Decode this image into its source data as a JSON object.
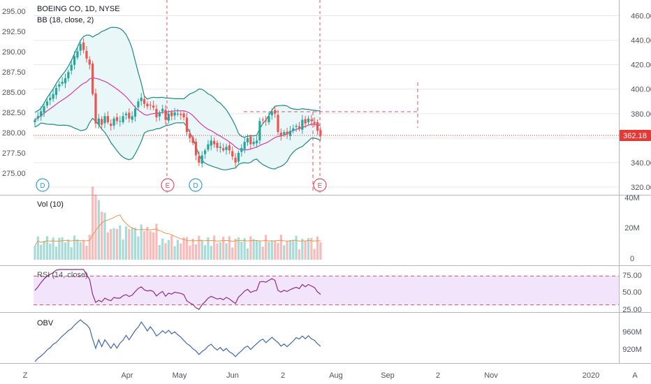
{
  "header": {
    "symbol_line": "BOEING CO, 1D, NYSE",
    "indicator_line": "BB (18, close, 2)"
  },
  "colors": {
    "up": "#26a69a",
    "down": "#ef5350",
    "bb_band": "#1b8a80",
    "bb_basis": "#d63aa5",
    "bb_fill": "#e7f6f7",
    "volume_ma": "#e8964c",
    "rsi_line": "#8b2e86",
    "rsi_band_fill": "#f1e4fb",
    "rsi_band_line": "#e04c62",
    "obv_line": "#3e67b1",
    "event_line": "#e04c62",
    "price_line": "#e53935",
    "dividend_marker": "#2f9ed6",
    "earnings_marker": "#e04c62",
    "axis_text": "#50535e",
    "grid": "#e6e8ec"
  },
  "price_axis_left": {
    "ticks": [
      "295.00",
      "292.50",
      "290.00",
      "287.50",
      "285.00",
      "282.50",
      "280.00",
      "277.50",
      "275.00"
    ]
  },
  "price_axis_right": {
    "ticks": [
      "460.00",
      "440.00",
      "420.00",
      "400.00",
      "380.00",
      "360.00",
      "340.00",
      "320.00"
    ]
  },
  "last_price_label": "362.18",
  "x_axis": {
    "labels": [
      "Apr",
      "May",
      "Jun",
      "2",
      "Aug",
      "Sep",
      "2",
      "Nov",
      "2020"
    ]
  },
  "event_markers": [
    {
      "type": "dividend",
      "label": "D"
    },
    {
      "type": "earnings",
      "label": "E"
    },
    {
      "type": "dividend",
      "label": "D"
    },
    {
      "type": "earnings",
      "label": "E"
    }
  ],
  "volume_panel": {
    "title": "Vol (10)",
    "ticks": [
      "40M",
      "20M",
      "0"
    ]
  },
  "rsi_panel": {
    "title": "RSI (14, close)",
    "ticks": [
      "75.00",
      "50.00",
      "25.00"
    ]
  },
  "obv_panel": {
    "title": "OBV",
    "ticks": [
      "960M",
      "920M"
    ]
  },
  "footer": {
    "left_button": "Z",
    "right_button": "A"
  },
  "chart_data": {
    "type": "candlestick",
    "title": "BOEING CO, 1D, NYSE",
    "right_axis_range": [
      320,
      470
    ],
    "bollinger_bands": {
      "period": 18,
      "stddev": 2
    },
    "last_price": 362.18,
    "closes_approx": [
      375,
      378,
      382,
      386,
      390,
      393,
      396,
      401,
      404,
      406,
      409,
      414,
      420,
      427,
      431,
      437,
      432,
      425,
      420,
      396,
      372,
      376,
      371,
      378,
      373,
      370,
      376,
      374,
      374,
      378,
      380,
      376,
      378,
      384,
      390,
      393,
      388,
      386,
      387,
      385,
      377,
      381,
      384,
      375,
      380,
      378,
      381,
      380,
      379,
      377,
      365,
      360,
      356,
      346,
      340,
      346,
      350,
      355,
      358,
      355,
      352,
      353,
      350,
      353,
      350,
      345,
      340,
      348,
      352,
      357,
      360,
      355,
      357,
      358,
      374,
      375,
      374,
      378,
      382,
      380,
      365,
      362,
      365,
      363,
      366,
      368,
      370,
      368,
      375,
      372,
      376,
      374,
      372,
      366,
      362
    ],
    "rsi_levels": [
      70,
      30
    ],
    "rsi_range": [
      20,
      80
    ]
  }
}
